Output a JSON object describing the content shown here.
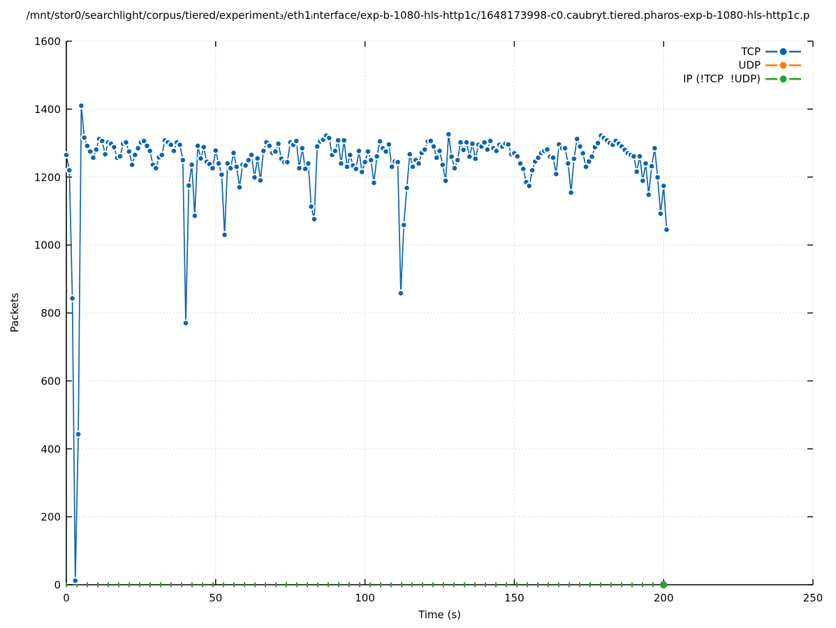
{
  "chart_data": {
    "type": "line",
    "title": "/mnt/stor0/searchlight/corpus/tiered/experiment₃/eth1ᵢnterface/exp-b-1080-hls-http1c/1648173998-c0.caubryt.tiered.pharos-exp-b-1080-hls-http1c.p",
    "xlabel": "Time (s)",
    "ylabel": "Packets",
    "xlim": [
      0,
      250
    ],
    "ylim": [
      0,
      1600
    ],
    "x_ticks": [
      0,
      50,
      100,
      150,
      200,
      250
    ],
    "y_ticks": [
      0,
      200,
      400,
      600,
      800,
      1000,
      1200,
      1400,
      1600
    ],
    "grid": "dotted",
    "legend_position": "top-right-inside",
    "background": "#ffffff",
    "axis_color": "#000000",
    "grid_color": "#b5b5b5",
    "series": [
      {
        "name": "TCP",
        "color": "#0d64ad",
        "marker": "circle",
        "line_style": "solid-with-marker-gaps",
        "x_start": 0,
        "x_step": 1,
        "values": [
          1265,
          1220,
          843,
          12,
          443,
          1410,
          1316,
          1292,
          1275,
          1257,
          1281,
          1312,
          1306,
          1267,
          1302,
          1298,
          1288,
          1257,
          1261,
          1298,
          1302,
          1275,
          1236,
          1265,
          1285,
          1302,
          1306,
          1292,
          1277,
          1236,
          1226,
          1258,
          1265,
          1308,
          1302,
          1295,
          1277,
          1302,
          1295,
          1250,
          770,
          1175,
          1236,
          1086,
          1292,
          1255,
          1288,
          1245,
          1238,
          1226,
          1278,
          1240,
          1207,
          1030,
          1240,
          1226,
          1271,
          1230,
          1170,
          1236,
          1234,
          1250,
          1265,
          1199,
          1255,
          1190,
          1277,
          1302,
          1292,
          1271,
          1275,
          1298,
          1254,
          1244,
          1244,
          1302,
          1295,
          1306,
          1226,
          1285,
          1224,
          1240,
          1113,
          1076,
          1290,
          1305,
          1310,
          1322,
          1315,
          1265,
          1277,
          1308,
          1240,
          1308,
          1230,
          1265,
          1234,
          1224,
          1277,
          1215,
          1244,
          1275,
          1250,
          1183,
          1261,
          1305,
          1285,
          1275,
          1296,
          1230,
          1246,
          1244,
          858,
          1059,
          1168,
          1267,
          1230,
          1250,
          1240,
          1271,
          1281,
          1305,
          1306,
          1290,
          1257,
          1277,
          1236,
          1189,
          1326,
          1260,
          1226,
          1250,
          1302,
          1280,
          1302,
          1260,
          1298,
          1254,
          1295,
          1290,
          1302,
          1281,
          1306,
          1285,
          1277,
          1295,
          1290,
          1298,
          1296,
          1267,
          1270,
          1261,
          1240,
          1224,
          1185,
          1174,
          1220,
          1246,
          1257,
          1271,
          1277,
          1281,
          1260,
          1257,
          1209,
          1296,
          1285,
          1285,
          1240,
          1154,
          1254,
          1312,
          1290,
          1270,
          1230,
          1246,
          1260,
          1288,
          1300,
          1322,
          1315,
          1308,
          1300,
          1295,
          1306,
          1298,
          1290,
          1280,
          1270,
          1265,
          1261,
          1216,
          1261,
          1189,
          1240,
          1148,
          1232,
          1285,
          1199,
          1092,
          1174,
          1045
        ]
      },
      {
        "name": "UDP",
        "color": "#ff7f0e",
        "marker": "circle",
        "values": [],
        "note": "legend entry only; no data points visible in plot area"
      },
      {
        "name": "IP (!TCP  !UDP)",
        "color": "#2aa12e",
        "marker": "circle",
        "line_style": "dashed",
        "constant_value": 0,
        "x_start": 0,
        "x_end": 200,
        "note": "flat at zero along x-axis from 0 to 200, marker dot at x=200"
      }
    ]
  }
}
